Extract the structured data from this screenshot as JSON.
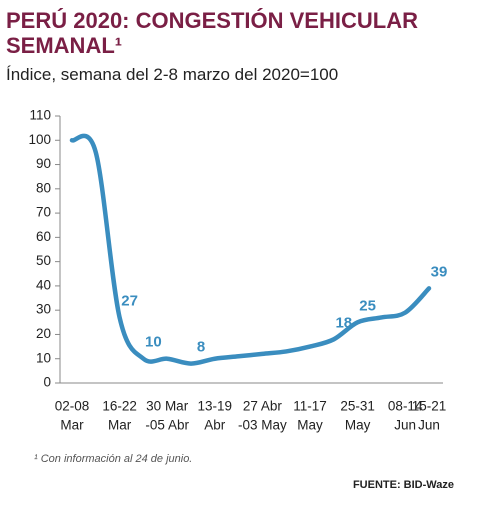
{
  "chart_data": {
    "type": "line",
    "title": [
      "PERÚ 2020: CONGESTIÓN VEHICULAR",
      "SEMANAL¹"
    ],
    "subtitle": "Índice, semana del 2-8 marzo del 2020=100",
    "categories": [
      [
        "02-08",
        "Mar"
      ],
      null,
      [
        "16-22",
        "Mar"
      ],
      null,
      [
        "30 Mar",
        "-05 Abr"
      ],
      null,
      [
        "13-19",
        "Abr"
      ],
      null,
      [
        "27 Abr",
        "-03 May"
      ],
      null,
      [
        "11-17",
        "May"
      ],
      null,
      [
        "25-31",
        "May"
      ],
      null,
      [
        "08-14",
        "Jun"
      ],
      [
        "15-21",
        "Jun"
      ]
    ],
    "series": [
      {
        "name": "Congestión vehicular",
        "color": "#3a8dbf",
        "values": [
          100,
          95,
          27,
          10,
          10,
          8,
          10,
          11,
          12,
          13,
          15,
          18,
          25,
          27,
          29,
          39
        ],
        "value_labels": [
          null,
          null,
          "27",
          "10",
          null,
          "8",
          null,
          null,
          null,
          null,
          null,
          "18",
          "25",
          null,
          null,
          "39"
        ]
      }
    ],
    "ylim": [
      0,
      110
    ],
    "yticks": [
      0,
      10,
      20,
      30,
      40,
      50,
      60,
      70,
      80,
      90,
      100,
      110
    ],
    "grid": false,
    "footnote": "¹ Con información al 24 de junio.",
    "source": "FUENTE: BID-Waze"
  }
}
